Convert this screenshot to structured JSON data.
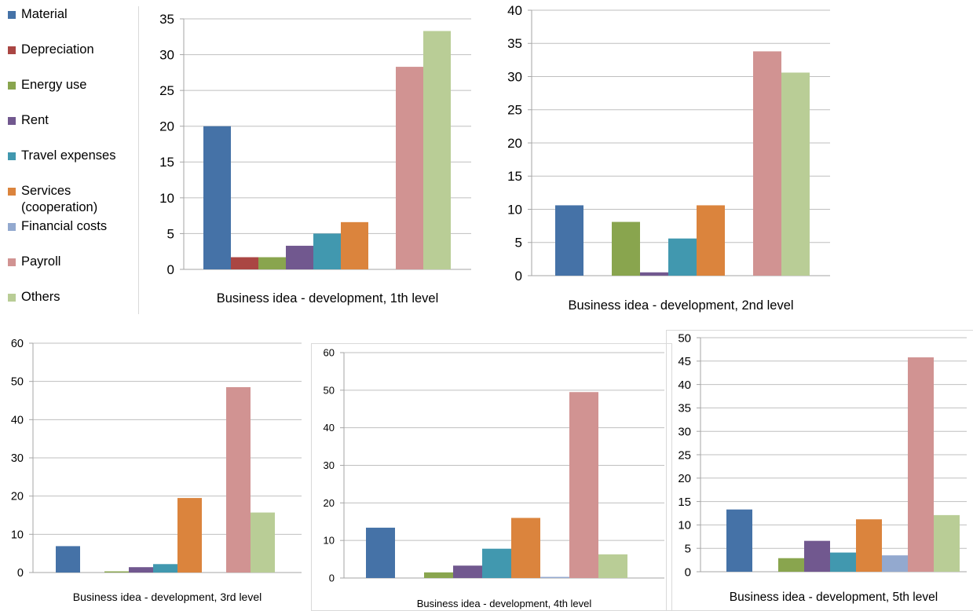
{
  "legend": {
    "items": [
      {
        "label": "Material",
        "color": "#4572A7"
      },
      {
        "label": "Depreciation",
        "color": "#AA4643"
      },
      {
        "label": "Energy use",
        "color": "#89A54E"
      },
      {
        "label": "Rent",
        "color": "#71588F"
      },
      {
        "label": "Travel expenses",
        "color": "#4198AF"
      },
      {
        "label": "Services\n(cooperation)",
        "color": "#DB843D"
      },
      {
        "label": "Financial costs",
        "color": "#93A9CF"
      },
      {
        "label": "Payroll",
        "color": "#D19392"
      },
      {
        "label": "Others",
        "color": "#B9CD96"
      }
    ]
  },
  "chart_data": [
    {
      "type": "bar",
      "xlabel": "Business idea - development, 1th level",
      "ylim": [
        0,
        35
      ],
      "yticks": [
        0,
        5,
        10,
        15,
        20,
        25,
        30,
        35
      ],
      "grid": true,
      "series_values": [
        20,
        1.7,
        1.7,
        3.3,
        5,
        6.6,
        0,
        28.3,
        33.3
      ]
    },
    {
      "type": "bar",
      "xlabel": "Business idea - development, 2nd level",
      "ylim": [
        0,
        40
      ],
      "yticks": [
        0,
        5,
        10,
        15,
        20,
        25,
        30,
        35,
        40
      ],
      "grid": true,
      "series_values": [
        10.6,
        0,
        8.1,
        0.5,
        5.6,
        10.6,
        0,
        33.8,
        30.6
      ]
    },
    {
      "type": "bar",
      "xlabel": "Business idea - development, 3rd level",
      "ylim": [
        0,
        60
      ],
      "yticks": [
        0,
        10,
        20,
        30,
        40,
        50,
        60
      ],
      "grid": true,
      "series_values": [
        6.9,
        0,
        0.3,
        1.4,
        2.2,
        19.5,
        0,
        48.5,
        15.7
      ]
    },
    {
      "type": "bar",
      "xlabel": "Business idea - development, 4th level",
      "ylim": [
        0,
        60
      ],
      "yticks": [
        0,
        10,
        20,
        30,
        40,
        50,
        60
      ],
      "grid": true,
      "series_values": [
        13.4,
        0,
        1.5,
        3.3,
        7.8,
        16,
        0.3,
        49.5,
        6.3
      ]
    },
    {
      "type": "bar",
      "xlabel": "Business idea - development, 5th level",
      "ylim": [
        0,
        50
      ],
      "yticks": [
        0,
        5,
        10,
        15,
        20,
        25,
        30,
        35,
        40,
        45,
        50
      ],
      "grid": true,
      "series_values": [
        13.3,
        0,
        2.9,
        6.6,
        4.1,
        11.2,
        3.5,
        45.8,
        12.1
      ]
    }
  ]
}
